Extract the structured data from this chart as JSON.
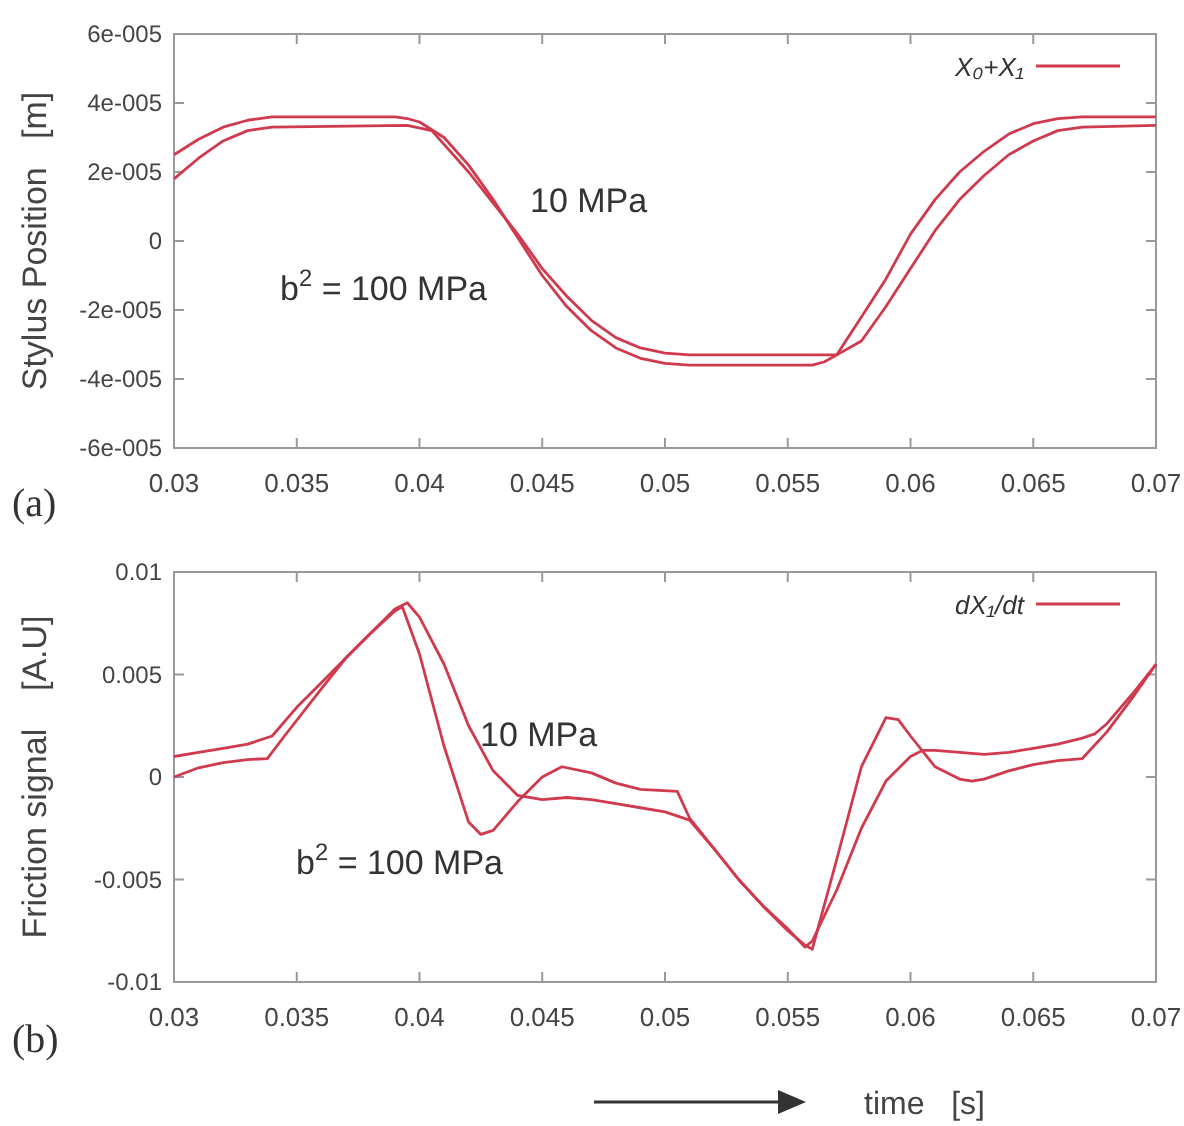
{
  "chart_data": [
    {
      "type": "line",
      "ylabel": "Stylus Position   [m]",
      "legend": "top right",
      "marker": "none",
      "line_style": "solid",
      "xlim": [
        0.03,
        0.07
      ],
      "xticks": [
        0.03,
        0.035,
        0.04,
        0.045,
        0.05,
        0.055,
        0.06,
        0.065,
        0.07
      ],
      "ylim": [
        -6e-05,
        6e-05
      ],
      "yticks": [
        {
          "value": -6e-05,
          "label": "-6e-005"
        },
        {
          "value": -4e-05,
          "label": "-4e-005"
        },
        {
          "value": -2e-05,
          "label": "-2e-005"
        },
        0,
        {
          "value": 2e-05,
          "label": "2e-005"
        },
        {
          "value": 4e-05,
          "label": "4e-005"
        },
        {
          "value": 6e-05,
          "label": "6e-005"
        }
      ],
      "series": [
        {
          "name": "X₀+X₁",
          "color": "#d03a4e",
          "x": [
            0.03,
            0.031,
            0.032,
            0.033,
            0.034,
            0.039,
            0.0395,
            0.04,
            0.041,
            0.042,
            0.043,
            0.044,
            0.045,
            0.046,
            0.047,
            0.048,
            0.049,
            0.05,
            0.051,
            0.056,
            0.0565,
            0.057,
            0.058,
            0.059,
            0.06,
            0.061,
            0.062,
            0.063,
            0.064,
            0.065,
            0.066,
            0.067,
            0.07
          ],
          "values": [
            2.5e-05,
            2.95e-05,
            3.3e-05,
            3.5e-05,
            3.6e-05,
            3.6e-05,
            3.55e-05,
            3.45e-05,
            3e-05,
            2.2e-05,
            1.2e-05,
            1e-06,
            -1e-05,
            -1.9e-05,
            -2.6e-05,
            -3.1e-05,
            -3.4e-05,
            -3.55e-05,
            -3.6e-05,
            -3.6e-05,
            -3.5e-05,
            -3.3e-05,
            -2.2e-05,
            -1.1e-05,
            2e-06,
            1.2e-05,
            2e-05,
            2.6e-05,
            3.1e-05,
            3.4e-05,
            3.55e-05,
            3.6e-05,
            3.6e-05
          ]
        },
        {
          "color": "#d03a4e",
          "x": [
            0.03,
            0.031,
            0.032,
            0.033,
            0.034,
            0.0395,
            0.0405,
            0.041,
            0.042,
            0.043,
            0.044,
            0.045,
            0.046,
            0.047,
            0.048,
            0.049,
            0.05,
            0.051,
            0.057,
            0.058,
            0.059,
            0.06,
            0.061,
            0.062,
            0.063,
            0.064,
            0.065,
            0.066,
            0.067,
            0.07
          ],
          "values": [
            1.8e-05,
            2.4e-05,
            2.9e-05,
            3.2e-05,
            3.3e-05,
            3.35e-05,
            3.2e-05,
            2.8e-05,
            2e-05,
            1.1e-05,
            2e-06,
            -8e-06,
            -1.6e-05,
            -2.3e-05,
            -2.8e-05,
            -3.1e-05,
            -3.25e-05,
            -3.3e-05,
            -3.3e-05,
            -2.9e-05,
            -1.9e-05,
            -8e-06,
            3e-06,
            1.2e-05,
            1.9e-05,
            2.5e-05,
            2.9e-05,
            3.2e-05,
            3.3e-05,
            3.35e-05
          ]
        }
      ],
      "annotations": [
        "10 MPa",
        "b$^{2}$ = 100 MPa",
        "(a)"
      ]
    },
    {
      "type": "line",
      "ylabel": "Friction signal    [A.U]",
      "xlabel": "time   [s]",
      "legend": "top right",
      "marker": "none",
      "line_style": "solid",
      "xlim": [
        0.03,
        0.07
      ],
      "xticks": [
        0.03,
        0.035,
        0.04,
        0.045,
        0.05,
        0.055,
        0.06,
        0.065,
        0.07
      ],
      "ylim": [
        -0.01,
        0.01
      ],
      "yticks": [
        -0.01,
        -0.005,
        0,
        0.005,
        0.01
      ],
      "series": [
        {
          "name": "dX₁/dt",
          "color": "#d03a4e",
          "x": [
            0.03,
            0.031,
            0.032,
            0.033,
            0.0338,
            0.0345,
            0.036,
            0.037,
            0.038,
            0.039,
            0.0393,
            0.04,
            0.041,
            0.042,
            0.0425,
            0.043,
            0.044,
            0.045,
            0.0458,
            0.047,
            0.048,
            0.049,
            0.0505,
            0.051,
            0.052,
            0.053,
            0.054,
            0.055,
            0.0557,
            0.056,
            0.057,
            0.058,
            0.059,
            0.0595,
            0.06,
            0.061,
            0.062,
            0.0625,
            0.063,
            0.064,
            0.065,
            0.066,
            0.067,
            0.068,
            0.069,
            0.07
          ],
          "values": [
            0,
            0.00045,
            0.0007,
            0.00085,
            0.0009,
            0.002,
            0.0043,
            0.0058,
            0.007,
            0.0081,
            0.0083,
            0.006,
            0.0015,
            -0.0022,
            -0.0028,
            -0.0026,
            -0.0012,
            0,
            0.0005,
            0.0002,
            -0.0003,
            -0.0006,
            -0.0007,
            -0.002,
            -0.0035,
            -0.005,
            -0.0063,
            -0.0075,
            -0.0082,
            -0.0084,
            -0.004,
            0.0005,
            0.0029,
            0.0028,
            0.002,
            0.0005,
            -0.0001,
            -0.0002,
            -0.0001,
            0.0003,
            0.0006,
            0.0008,
            0.0009,
            0.0022,
            0.0038,
            0.0055
          ]
        },
        {
          "color": "#d03a4e",
          "x": [
            0.03,
            0.031,
            0.032,
            0.033,
            0.034,
            0.035,
            0.036,
            0.037,
            0.038,
            0.039,
            0.0395,
            0.04,
            0.041,
            0.042,
            0.043,
            0.044,
            0.045,
            0.046,
            0.047,
            0.048,
            0.049,
            0.05,
            0.051,
            0.052,
            0.053,
            0.054,
            0.055,
            0.0557,
            0.056,
            0.057,
            0.058,
            0.059,
            0.06,
            0.0605,
            0.061,
            0.062,
            0.063,
            0.064,
            0.065,
            0.066,
            0.067,
            0.0675,
            0.068,
            0.069,
            0.07
          ],
          "values": [
            0.001,
            0.0012,
            0.0014,
            0.0016,
            0.002,
            0.0034,
            0.0046,
            0.0058,
            0.007,
            0.0082,
            0.0085,
            0.0078,
            0.0055,
            0.0025,
            0.0003,
            -0.0009,
            -0.0011,
            -0.001,
            -0.0011,
            -0.0013,
            -0.0015,
            -0.0017,
            -0.0021,
            -0.0035,
            -0.005,
            -0.0063,
            -0.0074,
            -0.0083,
            -0.008,
            -0.0055,
            -0.0025,
            -0.0002,
            0.001,
            0.0013,
            0.0013,
            0.0012,
            0.0011,
            0.0012,
            0.0014,
            0.0016,
            0.0019,
            0.0021,
            0.0026,
            0.004,
            0.0055
          ]
        }
      ],
      "annotations": [
        "10 MPa",
        "b$^{2}$ = 100 MPa",
        "(b)"
      ]
    }
  ]
}
